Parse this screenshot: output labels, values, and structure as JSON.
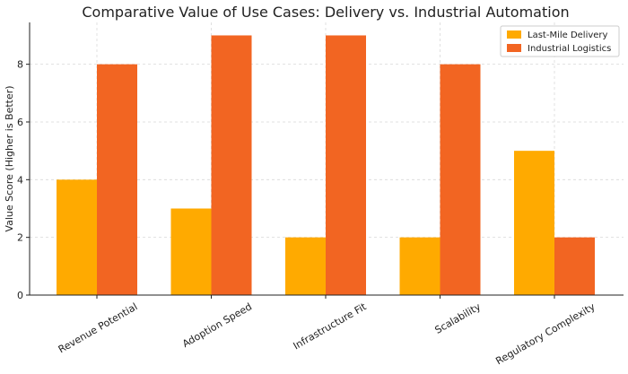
{
  "chart_data": {
    "type": "bar",
    "title": "Comparative Value of Use Cases: Delivery vs. Industrial Automation",
    "y_label": "Value Score (Higher is Better)",
    "categories": [
      "Revenue Potential",
      "Adoption Speed",
      "Infrastructure Fit",
      "Scalability",
      "Regulatory Complexity"
    ],
    "series": [
      {
        "name": "Last-Mile Delivery",
        "color": "#ffaa00",
        "values": [
          4,
          3,
          2,
          2,
          5
        ]
      },
      {
        "name": "Industrial Logistics",
        "color": "#f26522",
        "values": [
          8,
          9,
          9,
          8,
          2
        ]
      }
    ],
    "ylim": [
      0,
      9.45
    ],
    "yticks": [
      0,
      2,
      4,
      6,
      8
    ],
    "grid": true,
    "legend": "upper right"
  }
}
